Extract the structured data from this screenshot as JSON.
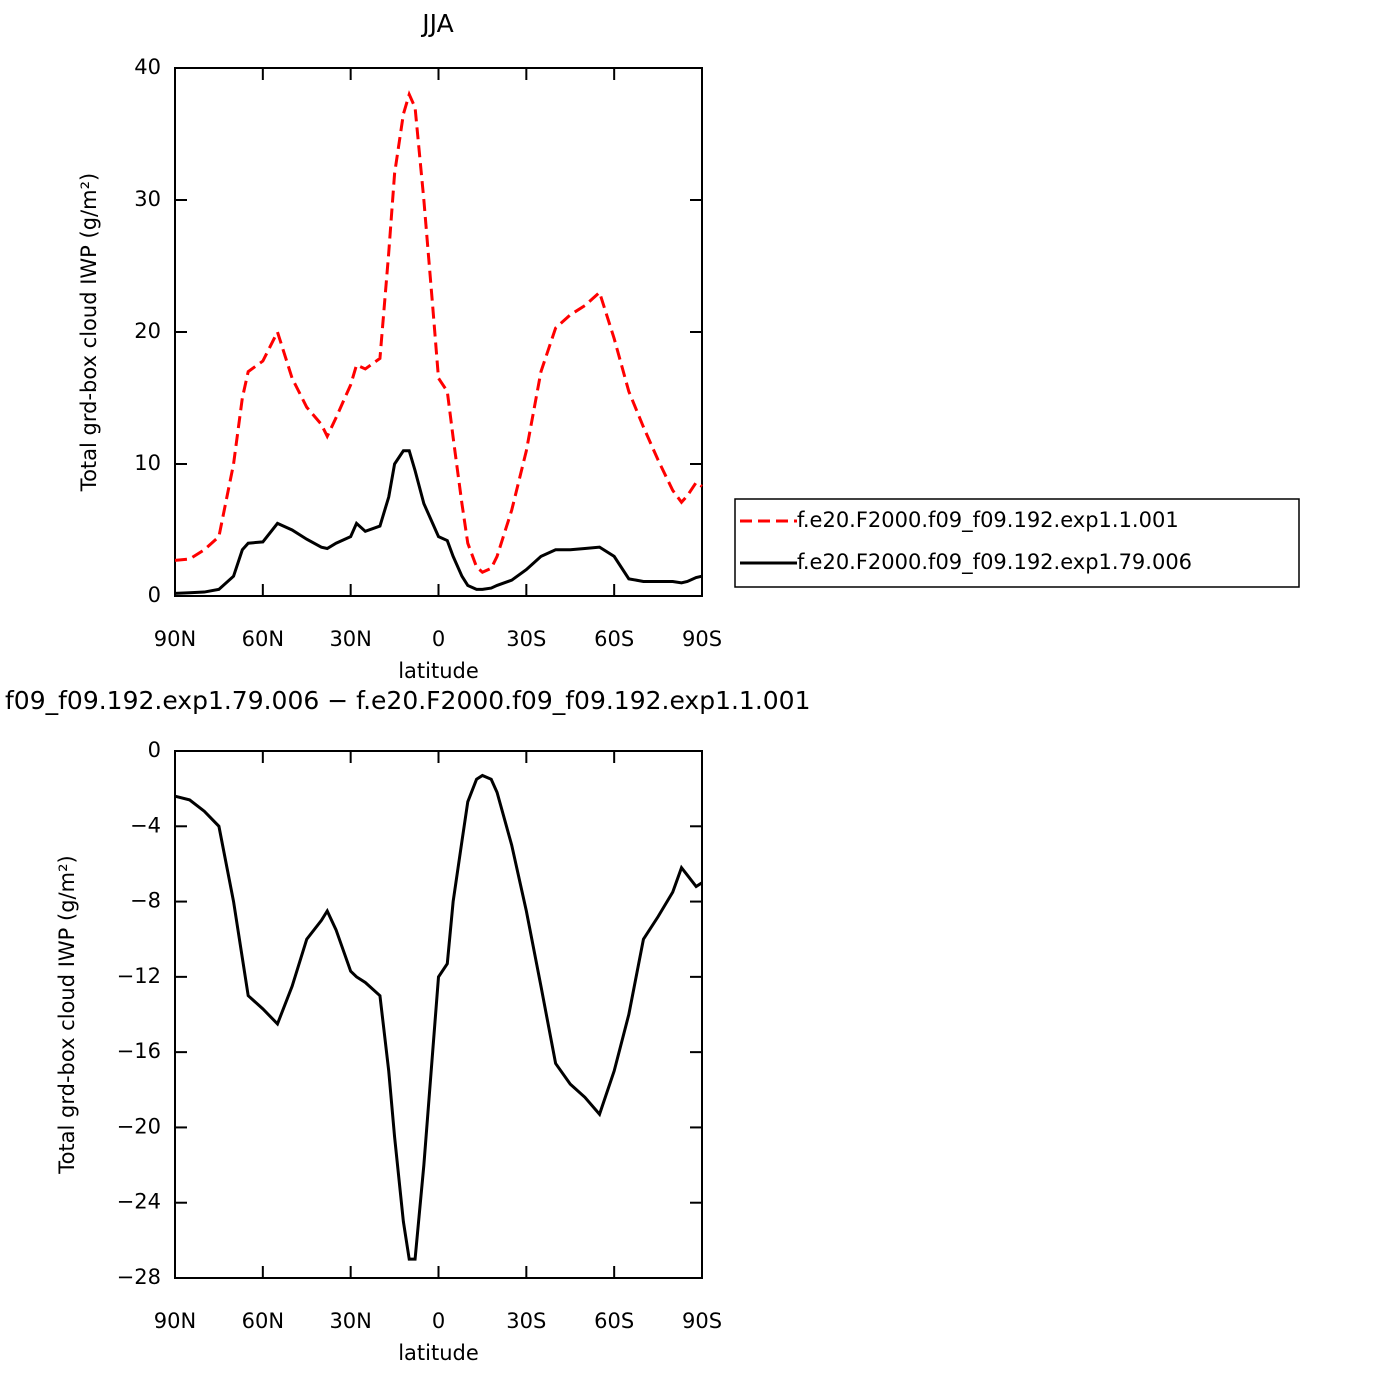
{
  "chart_data": [
    {
      "type": "line",
      "title": "JJA",
      "xlabel": "latitude",
      "ylabel": "Total grd-box cloud IWP (g/m²)",
      "xlim": [
        90,
        -90
      ],
      "xticks": [
        {
          "value": 90,
          "label": "90N"
        },
        {
          "value": 60,
          "label": "60N"
        },
        {
          "value": 30,
          "label": "30N"
        },
        0,
        {
          "value": -30,
          "label": "30S"
        },
        {
          "value": -60,
          "label": "60S"
        },
        {
          "value": -90,
          "label": "90S"
        }
      ],
      "ylim": [
        0,
        40
      ],
      "yticks": [
        0,
        10,
        20,
        30,
        40
      ],
      "x": [
        90,
        85,
        80,
        75,
        70,
        67,
        65,
        60,
        55,
        50,
        45,
        40,
        38,
        35,
        30,
        28,
        25,
        20,
        17,
        15,
        12,
        10,
        8,
        5,
        2,
        0,
        -3,
        -5,
        -8,
        -10,
        -13,
        -15,
        -18,
        -20,
        -25,
        -30,
        -35,
        -40,
        -45,
        -50,
        -55,
        -60,
        -65,
        -70,
        -75,
        -80,
        -83,
        -85,
        -88,
        -90
      ],
      "series": [
        {
          "name": "f.e20.F2000.f09_f09.192.exp1.1.001",
          "color": "#ff0000",
          "linestyle": "dashed",
          "values": [
            2.7,
            2.8,
            3.5,
            4.5,
            10,
            15,
            17,
            17.8,
            20,
            16.5,
            14.3,
            13,
            12.1,
            13.5,
            16,
            17.5,
            17.2,
            18,
            26,
            32,
            36.5,
            38,
            37,
            30,
            22,
            16.5,
            15.5,
            12,
            7,
            4,
            2.2,
            1.8,
            2.1,
            3,
            6.5,
            11,
            17,
            20.3,
            21.3,
            22,
            23,
            19.5,
            15.5,
            12.8,
            10.3,
            8,
            7.1,
            7.6,
            8.6,
            8.3
          ]
        },
        {
          "name": "f.e20.F2000.f09_f09.192.exp1.79.006",
          "color": "#000000",
          "linestyle": "solid",
          "values": [
            0.2,
            0.25,
            0.3,
            0.5,
            1.5,
            3.5,
            4,
            4.1,
            5.5,
            5,
            4.3,
            3.7,
            3.6,
            4,
            4.5,
            5.5,
            4.9,
            5.3,
            7.5,
            10,
            11,
            11,
            9.5,
            7,
            5.5,
            4.5,
            4.2,
            3,
            1.5,
            0.8,
            0.5,
            0.5,
            0.6,
            0.8,
            1.2,
            2,
            3,
            3.5,
            3.5,
            3.6,
            3.7,
            3,
            1.3,
            1.1,
            1.1,
            1.1,
            1,
            1.1,
            1.4,
            1.5
          ]
        }
      ]
    },
    {
      "type": "line",
      "title": "f09_f09.192.exp1.79.006 − f.e20.F2000.f09_f09.192.exp1.1.001",
      "xlabel": "latitude",
      "ylabel": "Total grd-box cloud IWP (g/m²)",
      "xlim": [
        90,
        -90
      ],
      "xticks": [
        {
          "value": 90,
          "label": "90N"
        },
        {
          "value": 60,
          "label": "60N"
        },
        {
          "value": 30,
          "label": "30N"
        },
        0,
        {
          "value": -30,
          "label": "30S"
        },
        {
          "value": -60,
          "label": "60S"
        },
        {
          "value": -90,
          "label": "90S"
        }
      ],
      "ylim": [
        -28,
        0
      ],
      "yticks": [
        0,
        -4,
        -8,
        -12,
        -16,
        -20,
        -24,
        -28
      ],
      "x": [
        90,
        85,
        80,
        75,
        70,
        67,
        65,
        60,
        55,
        50,
        45,
        40,
        38,
        35,
        30,
        28,
        25,
        20,
        17,
        15,
        12,
        10,
        8,
        5,
        2,
        0,
        -3,
        -5,
        -8,
        -10,
        -13,
        -15,
        -18,
        -20,
        -25,
        -30,
        -35,
        -40,
        -45,
        -50,
        -55,
        -60,
        -65,
        -70,
        -75,
        -80,
        -83,
        -85,
        -88,
        -90
      ],
      "values": [
        -2.4,
        -2.6,
        -3.2,
        -4,
        -8,
        -11,
        -13,
        -13.7,
        -14.5,
        -12.5,
        -10,
        -9,
        -8.5,
        -9.5,
        -11.7,
        -12,
        -12.3,
        -13,
        -17,
        -20.5,
        -25,
        -27,
        -27,
        -22,
        -16,
        -12,
        -11.3,
        -8,
        -4.8,
        -2.7,
        -1.5,
        -1.3,
        -1.5,
        -2.2,
        -5,
        -8.5,
        -12.5,
        -16.6,
        -17.7,
        -18.4,
        -19.3,
        -17,
        -14,
        -10,
        -8.8,
        -7.5,
        -6.2,
        -6.6,
        -7.2,
        -7
      ]
    }
  ]
}
